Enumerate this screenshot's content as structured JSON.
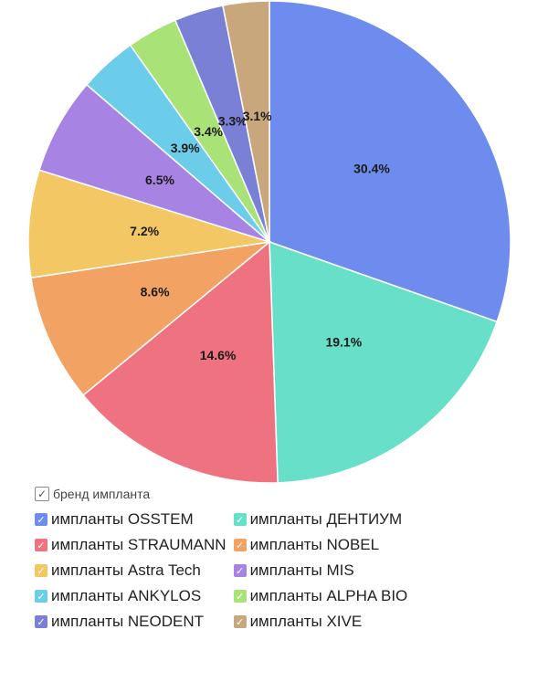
{
  "chart_data": {
    "type": "pie",
    "legend_title": "бренд импланта",
    "legend_placement": "bottom",
    "slices": [
      {
        "label": "импланты OSSTEM",
        "value": 30.4,
        "value_label": "30.4%",
        "color": "#6d8ced"
      },
      {
        "label": "импланты ДЕНТИУМ",
        "value": 19.1,
        "value_label": "19.1%",
        "color": "#68dfc8"
      },
      {
        "label": "импланты STRAUMANN",
        "value": 14.6,
        "value_label": "14.6%",
        "color": "#ee7280"
      },
      {
        "label": "импланты NOBEL",
        "value": 8.6,
        "value_label": "8.6%",
        "color": "#f2a363"
      },
      {
        "label": "импланты Astra Tech",
        "value": 7.2,
        "value_label": "7.2%",
        "color": "#f2c764"
      },
      {
        "label": "импланты MIS",
        "value": 6.5,
        "value_label": "6.5%",
        "color": "#a783e3"
      },
      {
        "label": "импланты ANKYLOS",
        "value": 3.9,
        "value_label": "3.9%",
        "color": "#6ccdea"
      },
      {
        "label": "импланты ALPHA BIO",
        "value": 3.4,
        "value_label": "3.4%",
        "color": "#a9e276"
      },
      {
        "label": "импланты NEODENT",
        "value": 3.3,
        "value_label": "3.3%",
        "color": "#7a80d6"
      },
      {
        "label": "импланты XIVE",
        "value": 3.1,
        "value_label": "3.1%",
        "color": "#c7a77b"
      }
    ]
  },
  "legend": {
    "title": "бренд импланта",
    "check_glyph": "✓"
  }
}
